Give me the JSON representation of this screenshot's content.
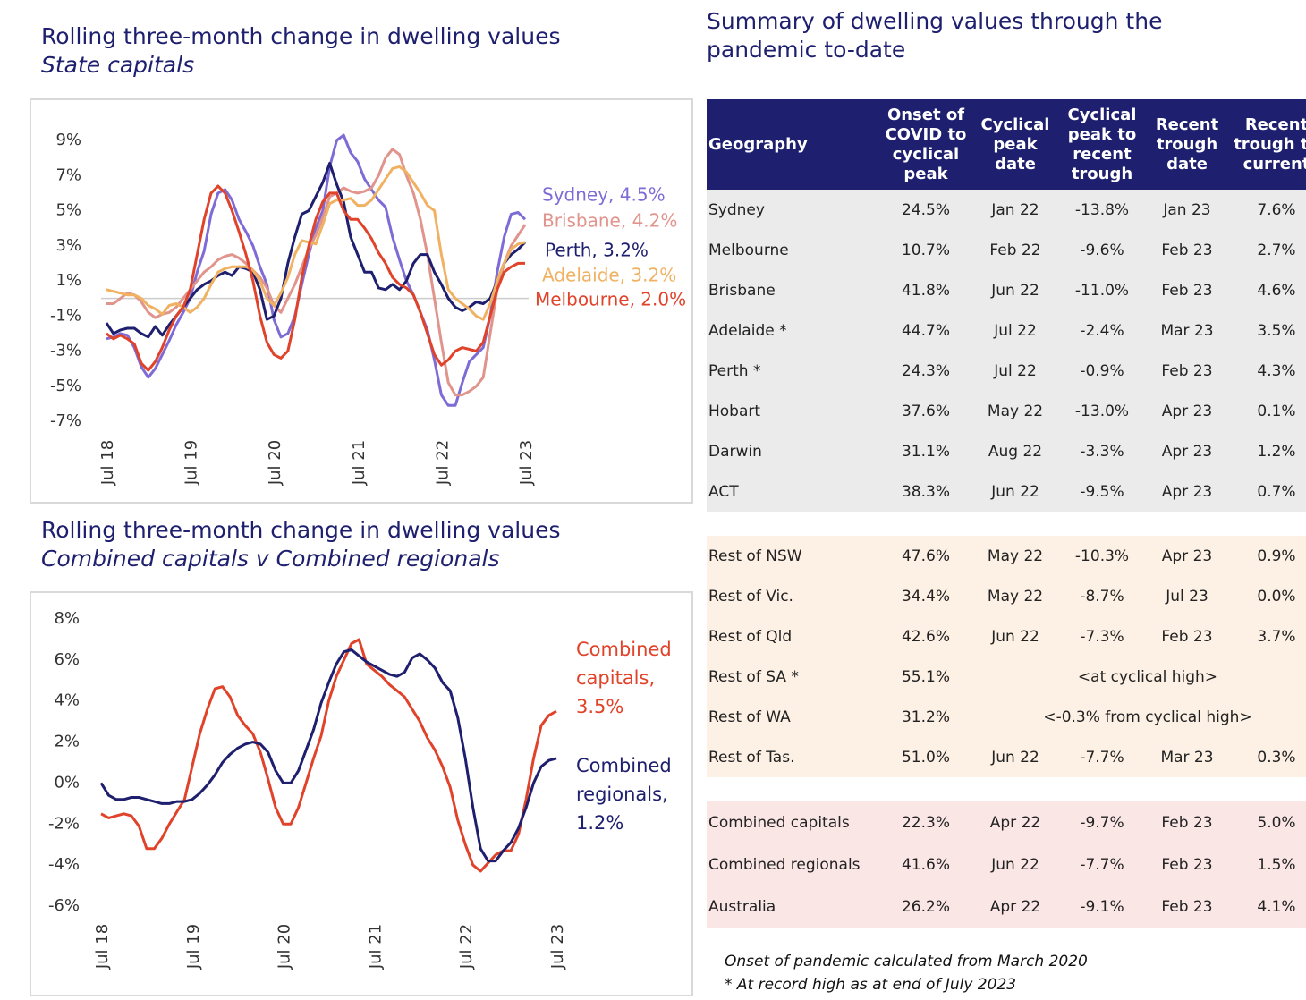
{
  "chart_data": [
    {
      "type": "line",
      "title": "Rolling three-month change in dwelling values",
      "subtitle": "State capitals",
      "categories": [
        "Jul 18",
        null,
        null,
        null,
        null,
        null,
        null,
        null,
        null,
        null,
        null,
        null,
        "Jul 19",
        null,
        null,
        null,
        null,
        null,
        null,
        null,
        null,
        null,
        null,
        null,
        "Jul 20",
        null,
        null,
        null,
        null,
        null,
        null,
        null,
        null,
        null,
        null,
        null,
        "Jul 21",
        null,
        null,
        null,
        null,
        null,
        null,
        null,
        null,
        null,
        null,
        null,
        "Jul 22",
        null,
        null,
        null,
        null,
        null,
        null,
        null,
        null,
        null,
        null,
        null,
        "Jul 23"
      ],
      "ylim": [
        -8,
        10
      ],
      "yticks": [
        {
          "value": 9,
          "label": "9%"
        },
        {
          "value": 7,
          "label": "7%"
        },
        {
          "value": 5,
          "label": "5%"
        },
        {
          "value": 3,
          "label": "3%"
        },
        {
          "value": 1,
          "label": "1%"
        },
        {
          "value": -1,
          "label": "-1%"
        },
        {
          "value": -3,
          "label": "-3%"
        },
        {
          "value": -5,
          "label": "-5%"
        },
        {
          "value": -7,
          "label": "-7%"
        }
      ],
      "reference_line": 0,
      "series": [
        {
          "name": "Sydney, 4.5%",
          "color": "#7e6bd6",
          "values": [
            -2.3,
            -2.2,
            -2.0,
            -2.1,
            -2.8,
            -3.9,
            -4.5,
            -4.0,
            -3.2,
            -2.4,
            -1.5,
            -0.8,
            0.0,
            1.5,
            2.7,
            4.8,
            6.0,
            6.2,
            5.6,
            4.5,
            3.8,
            3.0,
            1.8,
            0.8,
            -1.2,
            -2.2,
            -2.0,
            -1.0,
            0.8,
            2.5,
            4.0,
            5.0,
            7.5,
            9.0,
            9.3,
            8.3,
            7.8,
            6.8,
            6.2,
            5.6,
            5.2,
            3.5,
            2.2,
            1.0,
            0.2,
            -0.8,
            -1.8,
            -3.5,
            -5.5,
            -6.1,
            -6.1,
            -4.8,
            -3.6,
            -3.2,
            -2.8,
            -1.0,
            1.5,
            3.5,
            4.8,
            4.9,
            4.5
          ]
        },
        {
          "name": "Brisbane, 4.2%",
          "color": "#e0948c",
          "values": [
            -0.3,
            -0.3,
            0.0,
            0.3,
            0.2,
            -0.2,
            -0.8,
            -1.1,
            -0.9,
            -0.8,
            -0.5,
            0.0,
            0.5,
            1.0,
            1.5,
            1.8,
            2.2,
            2.4,
            2.5,
            2.3,
            2.0,
            1.6,
            1.2,
            0.6,
            -0.4,
            -0.8,
            0.0,
            0.8,
            1.8,
            2.8,
            3.6,
            4.6,
            5.8,
            6.0,
            6.3,
            6.1,
            6.0,
            6.1,
            6.3,
            7.0,
            8.0,
            8.5,
            8.2,
            7.0,
            6.0,
            4.5,
            2.5,
            0.0,
            -2.5,
            -4.8,
            -5.5,
            -5.5,
            -5.3,
            -5.0,
            -4.5,
            -2.0,
            0.5,
            2.0,
            3.0,
            3.6,
            4.2
          ]
        },
        {
          "name": "Perth, 3.2%",
          "color": "#1e1f6e",
          "values": [
            -1.4,
            -2.0,
            -1.8,
            -1.7,
            -1.7,
            -2.0,
            -2.2,
            -1.6,
            -2.1,
            -1.5,
            -1.0,
            -0.5,
            0.0,
            0.5,
            0.8,
            1.0,
            1.3,
            1.5,
            1.3,
            1.8,
            1.7,
            1.5,
            0.5,
            -1.2,
            -1.0,
            0.0,
            2.0,
            3.5,
            4.8,
            5.0,
            5.8,
            6.6,
            7.7,
            6.5,
            5.5,
            3.5,
            2.5,
            1.5,
            1.5,
            0.6,
            0.5,
            0.8,
            0.5,
            1.0,
            2.0,
            2.5,
            2.5,
            1.5,
            0.8,
            0.0,
            -0.5,
            -0.7,
            -0.5,
            -0.2,
            -0.3,
            0.0,
            1.0,
            2.0,
            2.5,
            2.8,
            3.2
          ]
        },
        {
          "name": "Adelaide, 3.2%",
          "color": "#f0b262",
          "values": [
            0.5,
            0.4,
            0.3,
            0.2,
            0.2,
            0.0,
            -0.4,
            -0.6,
            -0.9,
            -0.4,
            -0.3,
            -0.5,
            -0.8,
            -0.5,
            0.0,
            0.8,
            1.5,
            1.7,
            1.8,
            1.8,
            1.8,
            1.6,
            1.0,
            0.0,
            -0.4,
            0.3,
            1.2,
            2.5,
            3.3,
            3.2,
            3.1,
            4.2,
            5.4,
            5.6,
            5.6,
            5.7,
            5.3,
            5.3,
            5.6,
            6.2,
            6.8,
            7.4,
            7.5,
            7.2,
            6.6,
            6.0,
            5.3,
            5.0,
            2.5,
            0.5,
            0.0,
            -0.3,
            -0.6,
            -1.0,
            -1.2,
            -0.3,
            1.0,
            2.0,
            2.8,
            3.1,
            3.2
          ]
        },
        {
          "name": "Melbourne, 2.0%",
          "color": "#e0432a",
          "values": [
            -2.0,
            -2.3,
            -2.1,
            -2.3,
            -2.6,
            -3.7,
            -4.1,
            -3.6,
            -2.8,
            -1.8,
            -1.0,
            -0.5,
            0.5,
            2.5,
            4.5,
            6.0,
            6.4,
            6.0,
            5.0,
            3.8,
            2.5,
            1.0,
            -1.0,
            -2.5,
            -3.2,
            -3.4,
            -3.0,
            -1.2,
            1.2,
            3.0,
            4.5,
            5.5,
            6.0,
            6.0,
            5.0,
            4.5,
            4.5,
            4.0,
            3.4,
            2.6,
            2.0,
            1.2,
            0.8,
            0.6,
            0.2,
            -0.8,
            -2.0,
            -3.2,
            -3.8,
            -3.5,
            -3.0,
            -2.8,
            -2.9,
            -3.0,
            -2.5,
            -1.0,
            0.5,
            1.5,
            1.8,
            2.0,
            2.0
          ]
        }
      ]
    },
    {
      "type": "line",
      "title": "Rolling three-month change in dwelling values",
      "subtitle": "Combined capitals v Combined regionals",
      "categories": [
        "Jul 18",
        null,
        null,
        null,
        null,
        null,
        null,
        null,
        null,
        null,
        null,
        null,
        "Jul 19",
        null,
        null,
        null,
        null,
        null,
        null,
        null,
        null,
        null,
        null,
        null,
        "Jul 20",
        null,
        null,
        null,
        null,
        null,
        null,
        null,
        null,
        null,
        null,
        null,
        "Jul 21",
        null,
        null,
        null,
        null,
        null,
        null,
        null,
        null,
        null,
        null,
        null,
        "Jul 22",
        null,
        null,
        null,
        null,
        null,
        null,
        null,
        null,
        null,
        null,
        null,
        "Jul 23"
      ],
      "ylim": [
        -7,
        9
      ],
      "yticks": [
        {
          "value": 8,
          "label": "8%"
        },
        {
          "value": 6,
          "label": "6%"
        },
        {
          "value": 4,
          "label": "4%"
        },
        {
          "value": 2,
          "label": "2%"
        },
        {
          "value": 0,
          "label": "0%"
        },
        {
          "value": -2,
          "label": "-2%"
        },
        {
          "value": -4,
          "label": "-4%"
        },
        {
          "value": -6,
          "label": "-6%"
        }
      ],
      "series": [
        {
          "name": "Combined capitals, 3.5%",
          "color": "#e0432a",
          "values": [
            -1.5,
            -1.7,
            -1.6,
            -1.5,
            -1.6,
            -2.1,
            -3.2,
            -3.2,
            -2.7,
            -2.0,
            -1.4,
            -0.8,
            0.8,
            2.4,
            3.6,
            4.6,
            4.7,
            4.2,
            3.3,
            2.8,
            2.4,
            1.5,
            0.2,
            -1.2,
            -2.0,
            -2.0,
            -1.2,
            0.0,
            1.2,
            2.3,
            4.0,
            5.2,
            6.0,
            6.8,
            7.0,
            5.8,
            5.5,
            5.2,
            4.8,
            4.5,
            4.2,
            3.6,
            3.0,
            2.2,
            1.6,
            0.8,
            -0.2,
            -1.8,
            -3.0,
            -4.0,
            -4.3,
            -3.9,
            -3.5,
            -3.3,
            -3.3,
            -2.5,
            -0.8,
            1.2,
            2.8,
            3.3,
            3.5
          ]
        },
        {
          "name": "Combined regionals, 1.2%",
          "color": "#1e1f6e",
          "values": [
            0.0,
            -0.6,
            -0.8,
            -0.8,
            -0.7,
            -0.7,
            -0.8,
            -0.9,
            -1.0,
            -1.0,
            -0.9,
            -0.9,
            -0.8,
            -0.5,
            -0.1,
            0.4,
            1.0,
            1.4,
            1.7,
            1.9,
            2.0,
            1.9,
            1.5,
            0.6,
            0.0,
            0.0,
            0.6,
            1.6,
            2.6,
            3.9,
            4.9,
            5.8,
            6.4,
            6.5,
            6.2,
            5.9,
            5.7,
            5.5,
            5.3,
            5.2,
            5.4,
            6.1,
            6.3,
            6.0,
            5.6,
            4.9,
            4.5,
            3.2,
            1.2,
            -1.2,
            -3.2,
            -3.8,
            -3.8,
            -3.3,
            -2.9,
            -2.2,
            -1.2,
            0.0,
            0.8,
            1.1,
            1.2
          ]
        }
      ]
    }
  ],
  "table": {
    "title": "Summary of dwelling values through the pandemic to-date",
    "header": [
      "Geography",
      "Onset of COVID to cyclical peak",
      "Cyclical peak date",
      "Cyclical peak to recent trough",
      "Recent trough date",
      "Recent trough to current"
    ],
    "groups": [
      {
        "rows": [
          [
            "Sydney",
            "24.5%",
            "Jan 22",
            "-13.8%",
            "Jan 23",
            "7.6%"
          ],
          [
            "Melbourne",
            "10.7%",
            "Feb 22",
            "-9.6%",
            "Feb 23",
            "2.7%"
          ],
          [
            "Brisbane",
            "41.8%",
            "Jun 22",
            "-11.0%",
            "Feb 23",
            "4.6%"
          ],
          [
            "Adelaide *",
            "44.7%",
            "Jul 22",
            "-2.4%",
            "Mar 23",
            "3.5%"
          ],
          [
            "Perth *",
            "24.3%",
            "Jul 22",
            "-0.9%",
            "Feb 23",
            "4.3%"
          ],
          [
            "Hobart",
            "37.6%",
            "May 22",
            "-13.0%",
            "Apr 23",
            "0.1%"
          ],
          [
            "Darwin",
            "31.1%",
            "Aug 22",
            "-3.3%",
            "Apr 23",
            "1.2%"
          ],
          [
            "ACT",
            "38.3%",
            "Jun 22",
            "-9.5%",
            "Apr 23",
            "0.7%"
          ]
        ]
      },
      {
        "rows": [
          [
            "Rest of NSW",
            "47.6%",
            "May 22",
            "-10.3%",
            "Apr 23",
            "0.9%"
          ],
          [
            "Rest of Vic.",
            "34.4%",
            "May 22",
            "-8.7%",
            "Jul 23",
            "0.0%"
          ],
          [
            "Rest of Qld",
            "42.6%",
            "Jun 22",
            "-7.3%",
            "Feb 23",
            "3.7%"
          ],
          [
            "Rest of SA *",
            "55.1%",
            "<at cyclical high>"
          ],
          [
            "Rest of WA",
            "31.2%",
            "<-0.3% from cyclical high>"
          ],
          [
            "Rest of Tas.",
            "51.0%",
            "Jun 22",
            "-7.7%",
            "Mar 23",
            "0.3%"
          ]
        ]
      },
      {
        "rows": [
          [
            "Combined capitals",
            "22.3%",
            "Apr 22",
            "-9.7%",
            "Feb 23",
            "5.0%"
          ],
          [
            "Combined regionals",
            "41.6%",
            "Jun 22",
            "-7.7%",
            "Feb 23",
            "1.5%"
          ],
          [
            "Australia",
            "26.2%",
            "Apr 22",
            "-9.1%",
            "Feb 23",
            "4.1%"
          ]
        ]
      }
    ],
    "notes": [
      "Onset of pandemic calculated from March 2020",
      "* At record high as at end of July 2023"
    ]
  }
}
